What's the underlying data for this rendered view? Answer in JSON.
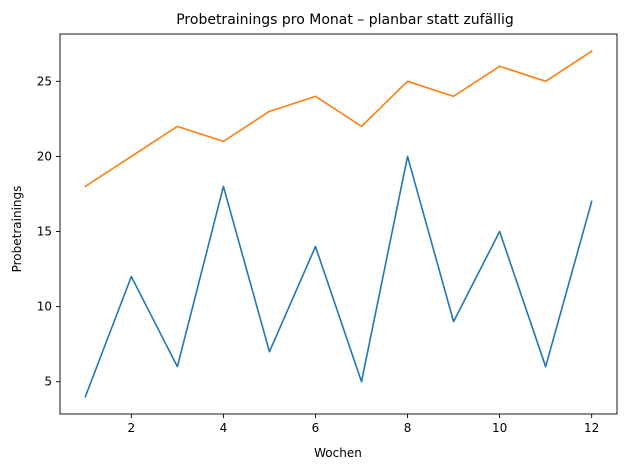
{
  "chart_data": {
    "type": "line",
    "title": "Probetrainings pro Monat – planbar statt zufällig",
    "xlabel": "Wochen",
    "ylabel": "Probetrainings",
    "x": [
      1,
      2,
      3,
      4,
      5,
      6,
      7,
      8,
      9,
      10,
      11,
      12
    ],
    "xticks": [
      2,
      4,
      6,
      8,
      10,
      12
    ],
    "yticks": [
      5,
      10,
      15,
      20,
      25
    ],
    "xlim": [
      0.45,
      12.55
    ],
    "ylim": [
      2.85,
      28.15
    ],
    "grid": false,
    "series": [
      {
        "color": "#1f77b4",
        "values": [
          4,
          12,
          6,
          18,
          7,
          14,
          5,
          20,
          9,
          15,
          6,
          17
        ]
      },
      {
        "color": "#ff7f0e",
        "values": [
          18,
          20,
          22,
          21,
          23,
          24,
          22,
          25,
          24,
          26,
          25,
          27
        ]
      }
    ]
  }
}
